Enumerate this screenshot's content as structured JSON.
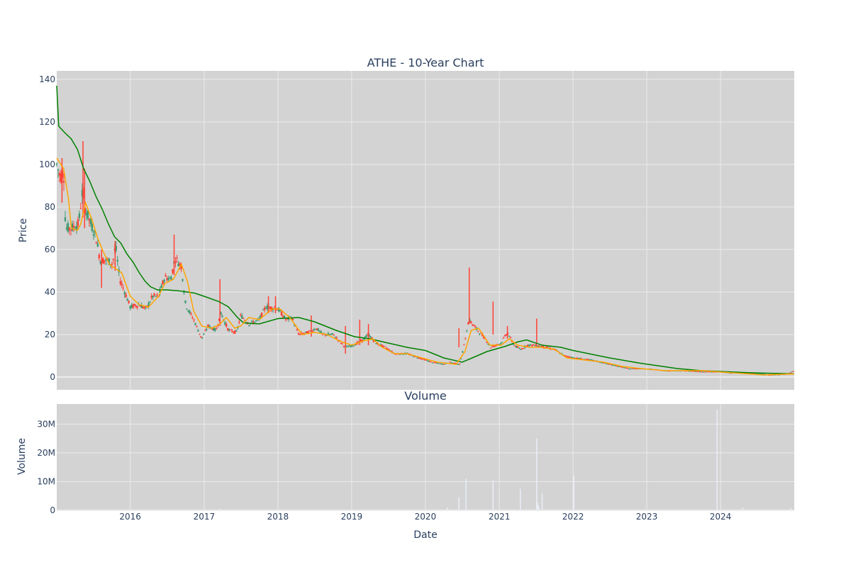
{
  "chart_data": [
    {
      "type": "candlestick",
      "title": "ATHE - 10-Year Chart",
      "ylabel": "Price",
      "ylim": [
        -6,
        144
      ],
      "yticks": [
        0,
        20,
        40,
        60,
        80,
        100,
        120,
        140
      ],
      "xlim": [
        "2015-01-02",
        "2024-12-31"
      ],
      "grid": true,
      "legend": "none",
      "colors": {
        "background": "#d3d3d3",
        "grid": "#ebebeb",
        "increasing": "#3d9970",
        "decreasing": "#ff4136",
        "ma_short": "#ffa500",
        "ma_long": "#008000"
      },
      "price_path": [
        [
          "2015-01-02",
          100
        ],
        [
          "2015-01-20",
          94
        ],
        [
          "2015-02-05",
          97
        ],
        [
          "2015-02-15",
          70
        ],
        [
          "2015-03-15",
          70
        ],
        [
          "2015-04-20",
          72
        ],
        [
          "2015-05-10",
          88
        ],
        [
          "2015-05-20",
          80
        ],
        [
          "2015-06-20",
          72
        ],
        [
          "2015-07-15",
          66
        ],
        [
          "2015-08-05",
          55
        ],
        [
          "2015-09-10",
          55
        ],
        [
          "2015-10-05",
          53
        ],
        [
          "2015-10-20",
          62
        ],
        [
          "2015-11-10",
          46
        ],
        [
          "2015-12-05",
          40
        ],
        [
          "2016-01-01",
          33
        ],
        [
          "2016-02-15",
          34
        ],
        [
          "2016-03-20",
          32
        ],
        [
          "2016-04-20",
          38
        ],
        [
          "2016-05-20",
          38
        ],
        [
          "2016-06-20",
          47
        ],
        [
          "2016-07-20",
          46
        ],
        [
          "2016-08-10",
          56
        ],
        [
          "2016-09-10",
          52
        ],
        [
          "2016-10-01",
          34
        ],
        [
          "2016-11-10",
          27
        ],
        [
          "2016-12-20",
          18
        ],
        [
          "2017-01-20",
          24
        ],
        [
          "2017-03-01",
          22
        ],
        [
          "2017-03-25",
          30
        ],
        [
          "2017-05-01",
          22
        ],
        [
          "2017-06-10",
          21
        ],
        [
          "2017-07-01",
          29
        ],
        [
          "2017-08-10",
          25
        ],
        [
          "2017-10-01",
          27
        ],
        [
          "2017-11-01",
          33
        ],
        [
          "2018-01-01",
          32
        ],
        [
          "2018-02-10",
          27
        ],
        [
          "2018-03-10",
          28
        ],
        [
          "2018-04-15",
          20
        ],
        [
          "2018-06-01",
          21
        ],
        [
          "2018-07-10",
          23
        ],
        [
          "2018-08-10",
          20
        ],
        [
          "2018-10-01",
          20
        ],
        [
          "2018-12-01",
          14
        ],
        [
          "2019-01-10",
          15
        ],
        [
          "2019-02-20",
          17
        ],
        [
          "2019-03-25",
          20
        ],
        [
          "2019-05-01",
          16
        ],
        [
          "2019-06-15",
          14
        ],
        [
          "2019-08-01",
          11
        ],
        [
          "2019-10-01",
          11
        ],
        [
          "2019-12-01",
          9
        ],
        [
          "2020-02-01",
          7
        ],
        [
          "2020-04-01",
          6
        ],
        [
          "2020-05-01",
          7
        ],
        [
          "2020-06-20",
          6
        ],
        [
          "2020-07-10",
          15
        ],
        [
          "2020-08-03",
          27
        ],
        [
          "2020-09-15",
          22
        ],
        [
          "2020-10-15",
          19
        ],
        [
          "2020-11-20",
          14
        ],
        [
          "2021-01-10",
          16
        ],
        [
          "2021-02-10",
          21
        ],
        [
          "2021-03-15",
          15
        ],
        [
          "2021-04-15",
          13
        ],
        [
          "2021-05-20",
          15
        ],
        [
          "2021-07-05",
          15
        ],
        [
          "2021-08-15",
          14
        ],
        [
          "2021-10-01",
          13
        ],
        [
          "2021-11-20",
          10
        ],
        [
          "2022-01-10",
          9
        ],
        [
          "2022-04-01",
          8
        ],
        [
          "2022-07-01",
          6
        ],
        [
          "2022-10-01",
          4
        ],
        [
          "2023-01-01",
          4
        ],
        [
          "2023-04-01",
          3
        ],
        [
          "2023-07-01",
          3
        ],
        [
          "2023-10-01",
          2.5
        ],
        [
          "2024-01-01",
          2.5
        ],
        [
          "2024-03-01",
          2
        ],
        [
          "2024-06-01",
          2
        ],
        [
          "2024-09-01",
          1
        ],
        [
          "2024-12-01",
          1.5
        ],
        [
          "2024-12-31",
          3
        ]
      ],
      "spikes": [
        [
          "2015-01-28",
          82,
          103
        ],
        [
          "2015-05-12",
          75,
          111
        ],
        [
          "2015-05-20",
          70,
          98
        ],
        [
          "2015-08-12",
          42,
          60
        ],
        [
          "2015-10-18",
          50,
          64
        ],
        [
          "2016-08-05",
          48,
          67
        ],
        [
          "2017-03-20",
          24,
          46
        ],
        [
          "2017-11-15",
          30,
          38
        ],
        [
          "2017-12-20",
          30,
          38
        ],
        [
          "2018-06-15",
          19,
          29
        ],
        [
          "2018-12-01",
          11,
          24
        ],
        [
          "2019-02-10",
          15,
          27
        ],
        [
          "2019-03-25",
          15,
          25
        ],
        [
          "2020-06-15",
          14,
          23
        ],
        [
          "2020-08-05",
          25,
          51.5
        ],
        [
          "2020-12-01",
          20,
          35.5
        ],
        [
          "2021-02-10",
          18,
          24
        ],
        [
          "2021-07-05",
          16,
          27.5
        ]
      ],
      "ma_short": [
        [
          "2015-01-02",
          103
        ],
        [
          "2015-02-05",
          98
        ],
        [
          "2015-03-01",
          84
        ],
        [
          "2015-03-15",
          70
        ],
        [
          "2015-04-15",
          69
        ],
        [
          "2015-05-01",
          72
        ],
        [
          "2015-05-25",
          82
        ],
        [
          "2015-06-25",
          74
        ],
        [
          "2015-07-25",
          65
        ],
        [
          "2015-08-20",
          59
        ],
        [
          "2015-09-20",
          53
        ],
        [
          "2015-10-20",
          51
        ],
        [
          "2015-11-20",
          49
        ],
        [
          "2016-01-01",
          38
        ],
        [
          "2016-02-15",
          34
        ],
        [
          "2016-04-01",
          33
        ],
        [
          "2016-05-20",
          38
        ],
        [
          "2016-06-20",
          44
        ],
        [
          "2016-08-01",
          46
        ],
        [
          "2016-09-10",
          53
        ],
        [
          "2016-10-10",
          45
        ],
        [
          "2016-11-10",
          31
        ],
        [
          "2016-12-20",
          24
        ],
        [
          "2017-02-10",
          23
        ],
        [
          "2017-03-20",
          25
        ],
        [
          "2017-04-20",
          28
        ],
        [
          "2017-06-01",
          23
        ],
        [
          "2017-07-01",
          24
        ],
        [
          "2017-08-10",
          28
        ],
        [
          "2017-10-01",
          27
        ],
        [
          "2017-12-01",
          32
        ],
        [
          "2018-01-10",
          32
        ],
        [
          "2018-03-01",
          28
        ],
        [
          "2018-05-01",
          20
        ],
        [
          "2018-07-01",
          21
        ],
        [
          "2018-09-01",
          20
        ],
        [
          "2018-11-01",
          17
        ],
        [
          "2019-01-01",
          15
        ],
        [
          "2019-03-01",
          17
        ],
        [
          "2019-04-15",
          18
        ],
        [
          "2019-06-01",
          14
        ],
        [
          "2019-08-01",
          11
        ],
        [
          "2019-10-01",
          11
        ],
        [
          "2019-12-15",
          9
        ],
        [
          "2020-03-01",
          7
        ],
        [
          "2020-06-01",
          6
        ],
        [
          "2020-07-15",
          12
        ],
        [
          "2020-08-15",
          22
        ],
        [
          "2020-09-20",
          23
        ],
        [
          "2020-11-15",
          15
        ],
        [
          "2021-01-10",
          15
        ],
        [
          "2021-02-20",
          18
        ],
        [
          "2021-04-01",
          15
        ],
        [
          "2021-06-01",
          14
        ],
        [
          "2021-08-01",
          14
        ],
        [
          "2021-10-01",
          13
        ],
        [
          "2021-12-01",
          9
        ],
        [
          "2022-03-01",
          8
        ],
        [
          "2022-06-01",
          7
        ],
        [
          "2022-09-01",
          5
        ],
        [
          "2022-12-01",
          4
        ],
        [
          "2023-04-01",
          3
        ],
        [
          "2023-10-01",
          3
        ],
        [
          "2024-03-01",
          2
        ],
        [
          "2024-08-01",
          1
        ],
        [
          "2024-12-31",
          1.5
        ]
      ],
      "ma_long": [
        [
          "2015-01-02",
          137
        ],
        [
          "2015-01-12",
          118
        ],
        [
          "2015-02-10",
          115
        ],
        [
          "2015-03-15",
          112
        ],
        [
          "2015-04-15",
          107
        ],
        [
          "2015-05-15",
          98
        ],
        [
          "2015-06-15",
          92
        ],
        [
          "2015-07-15",
          85
        ],
        [
          "2015-08-15",
          79
        ],
        [
          "2015-09-15",
          72
        ],
        [
          "2015-10-15",
          66
        ],
        [
          "2015-11-15",
          63
        ],
        [
          "2015-12-15",
          58
        ],
        [
          "2016-01-15",
          54
        ],
        [
          "2016-02-15",
          49
        ],
        [
          "2016-03-15",
          45
        ],
        [
          "2016-04-10",
          42.5
        ],
        [
          "2016-05-15",
          41
        ],
        [
          "2016-07-01",
          41
        ],
        [
          "2016-09-01",
          40.5
        ],
        [
          "2016-11-15",
          39.5
        ],
        [
          "2017-01-15",
          37.5
        ],
        [
          "2017-03-15",
          35.5
        ],
        [
          "2017-05-01",
          33
        ],
        [
          "2017-06-15",
          28
        ],
        [
          "2017-07-15",
          25.5
        ],
        [
          "2017-10-01",
          25
        ],
        [
          "2018-01-01",
          27.5
        ],
        [
          "2018-04-15",
          28
        ],
        [
          "2018-07-01",
          26
        ],
        [
          "2018-10-15",
          22
        ],
        [
          "2019-01-15",
          19
        ],
        [
          "2019-04-01",
          18
        ],
        [
          "2019-07-01",
          16
        ],
        [
          "2019-10-01",
          14
        ],
        [
          "2020-01-01",
          12.5
        ],
        [
          "2020-04-01",
          9
        ],
        [
          "2020-07-01",
          7
        ],
        [
          "2020-09-01",
          9.5
        ],
        [
          "2020-11-01",
          12
        ],
        [
          "2021-02-01",
          14.5
        ],
        [
          "2021-04-01",
          16.5
        ],
        [
          "2021-05-15",
          17.5
        ],
        [
          "2021-08-01",
          15
        ],
        [
          "2021-11-01",
          14
        ],
        [
          "2022-01-01",
          12.5
        ],
        [
          "2022-07-01",
          9
        ],
        [
          "2022-12-01",
          6.5
        ],
        [
          "2023-06-01",
          4
        ],
        [
          "2023-10-01",
          3
        ],
        [
          "2024-06-01",
          2
        ],
        [
          "2024-12-31",
          1.5
        ]
      ],
      "x_tick_labels": [
        "2016",
        "2017",
        "2018",
        "2019",
        "2020",
        "2021",
        "2022",
        "2023",
        "2024"
      ]
    },
    {
      "type": "bar",
      "title": "Volume",
      "ylabel": "Volume",
      "xlabel": "Date",
      "ylim": [
        0,
        37
      ],
      "yticks": [
        0,
        10,
        20,
        30
      ],
      "ytick_labels": [
        "0",
        "10M",
        "20M",
        "30M"
      ],
      "unit": "M",
      "colors": {
        "bars": "#e8ecf5"
      },
      "x_tick_labels": [
        "2016",
        "2017",
        "2018",
        "2019",
        "2020",
        "2021",
        "2022",
        "2023",
        "2024"
      ],
      "values": [
        [
          "2015-05-12",
          0.4
        ],
        [
          "2017-03-20",
          0.6
        ],
        [
          "2019-02-10",
          0.3
        ],
        [
          "2020-04-20",
          1
        ],
        [
          "2020-06-15",
          4.5
        ],
        [
          "2020-07-20",
          11
        ],
        [
          "2020-12-01",
          10.5
        ],
        [
          "2021-04-15",
          7.5
        ],
        [
          "2021-07-05",
          25
        ],
        [
          "2021-07-10",
          2.5
        ],
        [
          "2021-07-15",
          1.5
        ],
        [
          "2021-08-01",
          6
        ],
        [
          "2022-01-05",
          12
        ],
        [
          "2023-12-15",
          35
        ],
        [
          "2024-04-20",
          1
        ],
        [
          "2024-12-15",
          0.8
        ]
      ]
    }
  ]
}
